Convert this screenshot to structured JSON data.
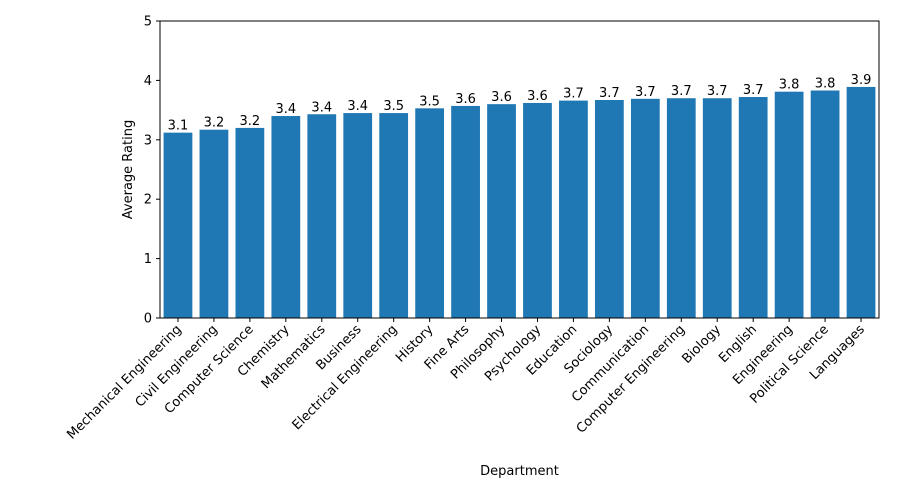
{
  "chart_data": {
    "type": "bar",
    "title": "",
    "xlabel": "Department",
    "ylabel": "Average Rating",
    "ylim": [
      0,
      5
    ],
    "yticks": [
      0,
      1,
      2,
      3,
      4,
      5
    ],
    "grid": false,
    "bar_color": "#1f77b4",
    "categories": [
      "Mechanical Engineering",
      "Civil Engineering",
      "Computer Science",
      "Chemistry",
      "Mathematics",
      "Business",
      "Electrical Engineering",
      "History",
      "Fine Arts",
      "Philosophy",
      "Psychology",
      "Education",
      "Sociology",
      "Communication",
      "Computer Engineering",
      "Biology",
      "English",
      "Engineering",
      "Political Science",
      "Languages"
    ],
    "values": [
      3.12,
      3.17,
      3.2,
      3.4,
      3.43,
      3.45,
      3.45,
      3.53,
      3.57,
      3.6,
      3.62,
      3.66,
      3.67,
      3.69,
      3.7,
      3.7,
      3.72,
      3.81,
      3.83,
      3.89
    ],
    "data_labels": [
      "3.1",
      "3.2",
      "3.2",
      "3.4",
      "3.4",
      "3.4",
      "3.5",
      "3.5",
      "3.6",
      "3.6",
      "3.6",
      "3.7",
      "3.7",
      "3.7",
      "3.7",
      "3.7",
      "3.7",
      "3.8",
      "3.8",
      "3.9"
    ]
  }
}
